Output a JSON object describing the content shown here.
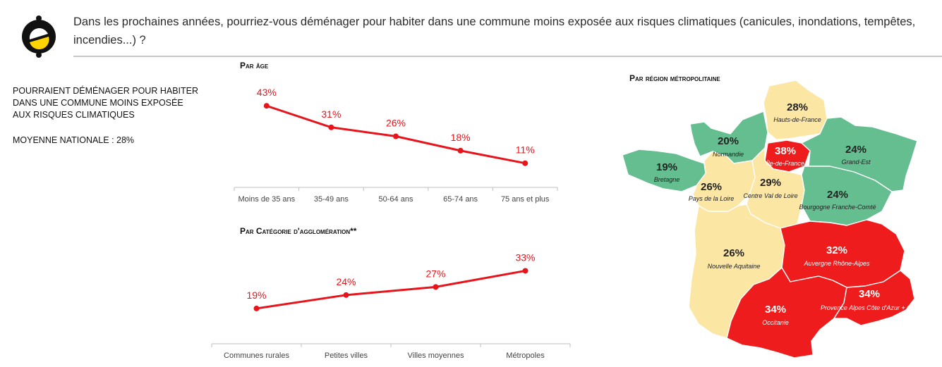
{
  "question": "Dans les prochaines années, pourriez-vous déménager pour habiter dans une commune moins exposée aux risques climatiques (canicules, inondations, tempêtes, incendies...) ?",
  "metric_label": "Pourraient déménager pour habiter dans une commune moins exposée aux risques climatiques",
  "national_average": "Moyenne nationale : 28%",
  "colors": {
    "line": "#e8141b",
    "high": "#ee1c1c",
    "mid": "#fbe6a4",
    "low": "#64be8f",
    "axis": "#bfbfbf"
  },
  "chart_data": [
    {
      "type": "line",
      "title": "Par âge",
      "categories": [
        "Moins de 35 ans",
        "35-49 ans",
        "50-64 ans",
        "65-74 ans",
        "75 ans et plus"
      ],
      "values": [
        43,
        31,
        26,
        18,
        11
      ],
      "labels": [
        "43%",
        "31%",
        "26%",
        "18%",
        "11%"
      ],
      "xlabel": "",
      "ylabel": "",
      "ylim": [
        0,
        50
      ]
    },
    {
      "type": "line",
      "title": "Par Catégorie d'agglomération**",
      "categories": [
        "Communes rurales",
        "Petites villes",
        "Villes moyennes",
        "Métropoles"
      ],
      "values": [
        19,
        24,
        27,
        33
      ],
      "labels": [
        "19%",
        "24%",
        "27%",
        "33%"
      ],
      "xlabel": "",
      "ylabel": "",
      "ylim": [
        0,
        50
      ]
    },
    {
      "type": "map",
      "title": "Par région métropolitaine",
      "regions": [
        {
          "name": "Hauts-de-France",
          "value": 28,
          "label": "28%"
        },
        {
          "name": "Normandie",
          "value": 20,
          "label": "20%"
        },
        {
          "name": "Île-de-France",
          "value": 38,
          "label": "38%"
        },
        {
          "name": "Grand-Est",
          "value": 24,
          "label": "24%"
        },
        {
          "name": "Bretagne",
          "value": 19,
          "label": "19%"
        },
        {
          "name": "Pays de la Loire",
          "value": 26,
          "label": "26%"
        },
        {
          "name": "Centre Val de Loire",
          "value": 29,
          "label": "29%"
        },
        {
          "name": "Bourgogne Franche-Comté",
          "value": 24,
          "label": "24%"
        },
        {
          "name": "Nouvelle Aquitaine",
          "value": 26,
          "label": "26%"
        },
        {
          "name": "Auvergne Rhône-Alpes",
          "value": 32,
          "label": "32%"
        },
        {
          "name": "Occitanie",
          "value": 34,
          "label": "34%"
        },
        {
          "name": "Provence Alpes Côte d'Azur + Corse",
          "value": 34,
          "label": "34%"
        }
      ]
    }
  ]
}
